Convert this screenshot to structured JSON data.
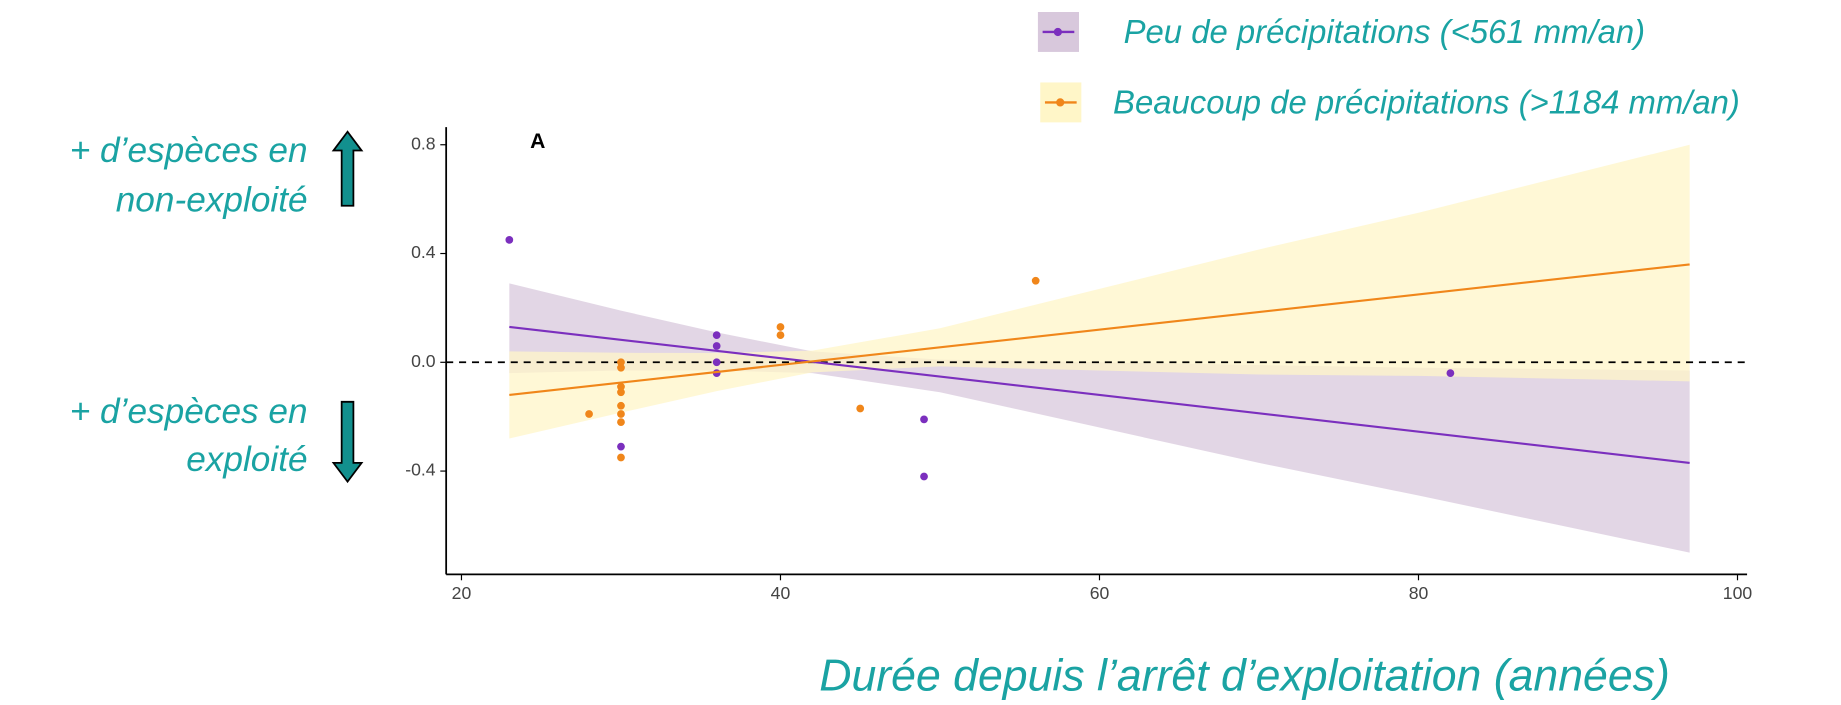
{
  "chart_data": {
    "type": "scatter",
    "panel_label": "A",
    "x_label": "Durée depuis l’arrêt d’exploitation (années)",
    "annotations": [
      {
        "lines": [
          "+ d’espèces en",
          "non-exploité"
        ]
      },
      {
        "lines": [
          "+ d’espèces en",
          "exploité"
        ]
      }
    ],
    "xlim": [
      19.04,
      100.6
    ],
    "ylim": [
      -0.78,
      0.865
    ],
    "xticks": [
      20,
      40,
      60,
      80,
      100
    ],
    "yticks": [
      0.8,
      0.4,
      {
        "value": 0,
        "label": "0.0"
      },
      -0.4
    ],
    "hline": 0,
    "series": [
      {
        "name": "Peu de précipitations (<561 mm/an)",
        "color": "#7b2fbe",
        "band_color": "#d8c8dc",
        "x": [
          23,
          30,
          36,
          36,
          36,
          36,
          49,
          49,
          82
        ],
        "values": [
          0.45,
          -0.31,
          0.1,
          0.06,
          0.0,
          -0.04,
          -0.21,
          -0.42,
          -0.04
        ],
        "fit": {
          "x": [
            23,
            97
          ],
          "y": [
            0.13,
            -0.37
          ]
        },
        "band": {
          "x": [
            23,
            30,
            36,
            42,
            50,
            60,
            70,
            80,
            97
          ],
          "upper": [
            0.29,
            0.19,
            0.11,
            0.04,
            0.01,
            0.0,
            -0.01,
            -0.02,
            -0.03
          ],
          "lower": [
            -0.04,
            -0.03,
            -0.03,
            -0.04,
            -0.11,
            -0.24,
            -0.37,
            -0.49,
            -0.7
          ]
        }
      },
      {
        "name": "Beaucoup de précipitations (>1184 mm/an)",
        "color": "#f0861a",
        "band_color": "#fff6c8",
        "x": [
          28,
          30,
          30,
          30,
          30,
          30,
          30,
          30,
          30,
          40,
          40,
          45,
          56
        ],
        "values": [
          -0.19,
          0.0,
          -0.02,
          -0.09,
          -0.11,
          -0.16,
          -0.19,
          -0.22,
          -0.35,
          0.13,
          0.1,
          -0.17,
          0.3
        ],
        "fit": {
          "x": [
            23,
            97
          ],
          "y": [
            -0.12,
            0.36
          ]
        },
        "band": {
          "x": [
            23,
            30,
            36,
            42,
            50,
            60,
            70,
            80,
            97
          ],
          "upper": [
            0.04,
            0.035,
            0.034,
            0.043,
            0.125,
            0.27,
            0.415,
            0.55,
            0.8
          ],
          "lower": [
            -0.28,
            -0.185,
            -0.106,
            -0.037,
            -0.015,
            -0.03,
            -0.045,
            -0.05,
            -0.07
          ]
        }
      }
    ]
  }
}
